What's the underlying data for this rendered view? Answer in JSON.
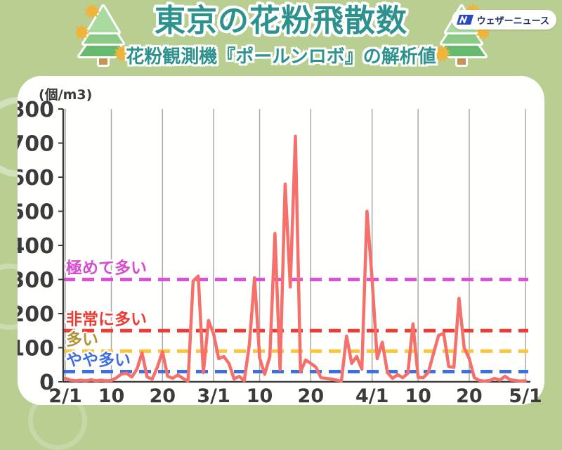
{
  "header": {
    "title": "東京の花粉飛散数",
    "subtitle": "花粉観測機『ポールンロボ』の解析値",
    "brand": {
      "logo_text": "ウェザーニュース"
    }
  },
  "colors": {
    "background": "#b9cf92",
    "card": "#fffffe",
    "title_text": "#2d918e",
    "axis": "#3b3b3b",
    "grid": "#a8a8a8",
    "series_line": "#f56f6b",
    "logo_blue": "#2a4bbf",
    "logo_text": "#1f2d69"
  },
  "chart_data": {
    "type": "line",
    "title": "東京の花粉飛散数",
    "unit_label": "(個/m3)",
    "ylim": [
      0,
      800
    ],
    "yticks": [
      0,
      100,
      200,
      300,
      400,
      500,
      600,
      700,
      800
    ],
    "grid": "vertical-only",
    "xticks": [
      {
        "label": "2/1",
        "day": 0
      },
      {
        "label": "10",
        "day": 9
      },
      {
        "label": "20",
        "day": 19
      },
      {
        "label": "3/1",
        "day": 29
      },
      {
        "label": "10",
        "day": 38
      },
      {
        "label": "20",
        "day": 48
      },
      {
        "label": "4/1",
        "day": 60
      },
      {
        "label": "10",
        "day": 69
      },
      {
        "label": "20",
        "day": 79
      },
      {
        "label": "5/1",
        "day": 90
      }
    ],
    "thresholds": [
      {
        "label": "極めて多い",
        "value": 300,
        "line_color": "#df4edb",
        "label_color": "#d44ed0"
      },
      {
        "label": "非常に多い",
        "value": 150,
        "line_color": "#ee3c35",
        "label_color": "#ee3c35"
      },
      {
        "label": "多い",
        "value": 90,
        "line_color": "#fdc43d",
        "label_color": "#ae9434"
      },
      {
        "label": "やや多い",
        "value": 30,
        "line_color": "#3e6ee0",
        "label_color": "#3e6ee0"
      }
    ],
    "series": [
      {
        "color": "#f56f6b",
        "start_date": "2/1",
        "end_date": "5/1",
        "dates": [
          "2/1",
          "2/2",
          "2/3",
          "2/4",
          "2/5",
          "2/6",
          "2/7",
          "2/8",
          "2/9",
          "2/10",
          "2/11",
          "2/12",
          "2/13",
          "2/14",
          "2/15",
          "2/16",
          "2/17",
          "2/18",
          "2/19",
          "2/20",
          "2/21",
          "2/22",
          "2/23",
          "2/24",
          "2/25",
          "2/26",
          "2/27",
          "2/28",
          "2/29",
          "3/1",
          "3/2",
          "3/3",
          "3/4",
          "3/5",
          "3/6",
          "3/7",
          "3/8",
          "3/9",
          "3/10",
          "3/11",
          "3/12",
          "3/13",
          "3/14",
          "3/15",
          "3/16",
          "3/17",
          "3/18",
          "3/19",
          "3/20",
          "3/21",
          "3/22",
          "3/23",
          "3/24",
          "3/25",
          "3/26",
          "3/27",
          "3/28",
          "3/29",
          "3/30",
          "3/31",
          "4/1",
          "4/2",
          "4/3",
          "4/4",
          "4/5",
          "4/6",
          "4/7",
          "4/8",
          "4/9",
          "4/10",
          "4/11",
          "4/12",
          "4/13",
          "4/14",
          "4/15",
          "4/16",
          "4/17",
          "4/18",
          "4/19",
          "4/20",
          "4/21",
          "4/22",
          "4/23",
          "4/24",
          "4/25",
          "4/26",
          "4/27",
          "4/28",
          "4/29",
          "4/30",
          "5/1"
        ],
        "values": [
          10,
          5,
          3,
          5,
          3,
          6,
          3,
          5,
          3,
          4,
          12,
          23,
          25,
          14,
          37,
          85,
          14,
          8,
          43,
          88,
          16,
          10,
          20,
          10,
          2,
          295,
          310,
          27,
          180,
          140,
          68,
          74,
          54,
          8,
          16,
          3,
          110,
          305,
          70,
          22,
          74,
          435,
          35,
          580,
          278,
          720,
          29,
          64,
          54,
          43,
          12,
          10,
          8,
          5,
          2,
          134,
          54,
          74,
          37,
          500,
          300,
          68,
          116,
          27,
          10,
          21,
          12,
          25,
          170,
          13,
          12,
          27,
          82,
          136,
          142,
          45,
          42,
          245,
          100,
          68,
          12,
          4,
          2,
          4,
          10,
          5,
          16,
          6,
          4,
          2,
          3
        ]
      }
    ]
  }
}
